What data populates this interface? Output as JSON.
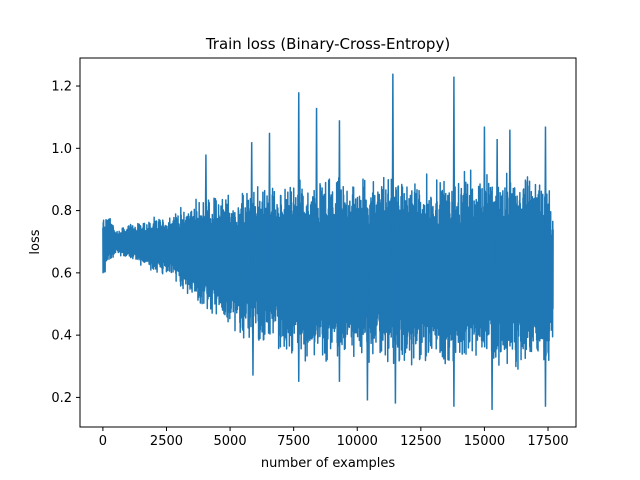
{
  "chart_data": {
    "type": "line",
    "title": "Train loss  (Binary-Cross-Entropy)",
    "xlabel": "number of examples",
    "ylabel": "loss",
    "xlim": [
      -900,
      18600
    ],
    "ylim": [
      0.105,
      1.29
    ],
    "xticks": [
      0,
      2500,
      5000,
      7500,
      10000,
      12500,
      15000,
      17500
    ],
    "xtick_labels": [
      "0",
      "2500",
      "5000",
      "7500",
      "10000",
      "12500",
      "15000",
      "17500"
    ],
    "yticks": [
      0.2,
      0.4,
      0.6,
      0.8,
      1.0,
      1.2
    ],
    "ytick_labels": [
      "0.2",
      "0.4",
      "0.6",
      "0.8",
      "1.0",
      "1.2"
    ],
    "grid": false,
    "legend": "none",
    "series": [
      {
        "color": "#1f77b4",
        "x": [
          0,
          250,
          500,
          750,
          1000,
          1500,
          2000,
          2500,
          3000,
          3500,
          4000,
          4500,
          5000,
          5500,
          6000,
          6500,
          7000,
          7500,
          8000,
          8500,
          9000,
          9500,
          10000,
          10500,
          11000,
          11500,
          12000,
          12500,
          13000,
          13500,
          14000,
          14500,
          15000,
          15500,
          16000,
          16500,
          17000,
          17500,
          17700
        ],
        "y_max": [
          0.79,
          0.8,
          0.74,
          0.75,
          0.76,
          0.77,
          0.78,
          0.79,
          0.81,
          0.84,
          0.85,
          0.86,
          0.87,
          0.88,
          0.89,
          0.9,
          0.9,
          0.91,
          0.91,
          0.92,
          0.92,
          0.92,
          0.92,
          0.93,
          0.93,
          0.93,
          0.93,
          0.93,
          0.93,
          0.93,
          0.93,
          0.94,
          0.94,
          0.94,
          0.94,
          0.94,
          0.94,
          0.94,
          0.81
        ],
        "y_min": [
          0.58,
          0.62,
          0.66,
          0.65,
          0.64,
          0.62,
          0.6,
          0.58,
          0.55,
          0.5,
          0.47,
          0.44,
          0.41,
          0.38,
          0.36,
          0.35,
          0.33,
          0.32,
          0.31,
          0.31,
          0.3,
          0.3,
          0.3,
          0.29,
          0.29,
          0.29,
          0.29,
          0.29,
          0.28,
          0.28,
          0.28,
          0.28,
          0.28,
          0.28,
          0.28,
          0.28,
          0.27,
          0.27,
          0.36
        ],
        "spikes_high": [
          [
            4050,
            0.98
          ],
          [
            5850,
            1.02
          ],
          [
            6550,
            1.05
          ],
          [
            7700,
            1.18
          ],
          [
            8400,
            1.13
          ],
          [
            9300,
            1.09
          ],
          [
            11400,
            1.24
          ],
          [
            13800,
            1.23
          ],
          [
            15000,
            1.07
          ],
          [
            15500,
            1.03
          ],
          [
            16000,
            1.06
          ],
          [
            17400,
            1.07
          ]
        ],
        "spikes_low": [
          [
            5900,
            0.27
          ],
          [
            7700,
            0.25
          ],
          [
            9300,
            0.25
          ],
          [
            10400,
            0.19
          ],
          [
            11500,
            0.18
          ],
          [
            13800,
            0.17
          ],
          [
            15300,
            0.16
          ],
          [
            17400,
            0.17
          ]
        ]
      }
    ]
  }
}
